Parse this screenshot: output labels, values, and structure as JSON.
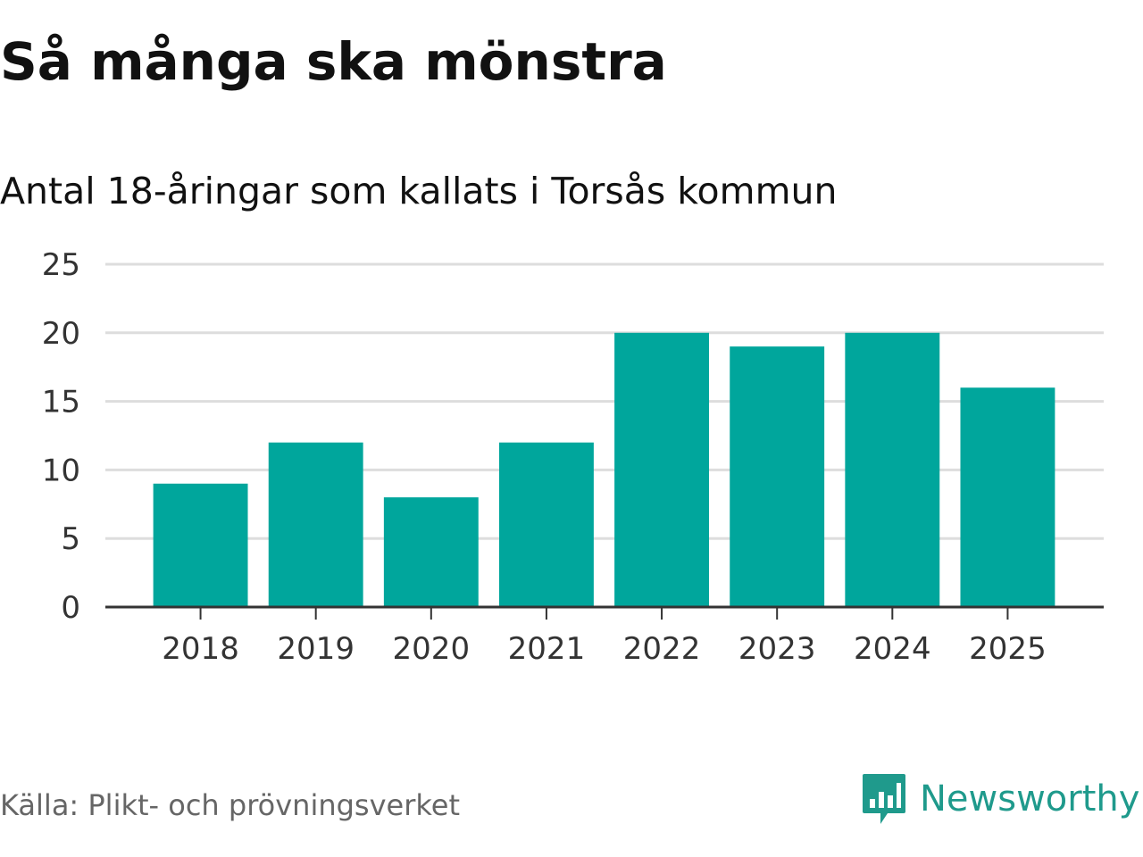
{
  "title": "Så många ska mönstra",
  "subtitle": "Antal 18-åringar som kallats i Torsås kommun",
  "source": "Källa: Plikt- och prövningsverket",
  "brand": {
    "name": "Newsworthy",
    "icon": "newsworthy-logo-icon",
    "color": "#1f9a8c"
  },
  "colors": {
    "bar": "#00a69c",
    "grid": "#dddddd",
    "axis": "#333333"
  },
  "chart_data": {
    "type": "bar",
    "categories": [
      "2018",
      "2019",
      "2020",
      "2021",
      "2022",
      "2023",
      "2024",
      "2025"
    ],
    "values": [
      9,
      12,
      8,
      12,
      20,
      19,
      20,
      16
    ],
    "yticks": [
      "0",
      "5",
      "10",
      "15",
      "20",
      "25"
    ],
    "ylim": [
      0,
      25
    ],
    "grid": true,
    "legend": "none"
  }
}
